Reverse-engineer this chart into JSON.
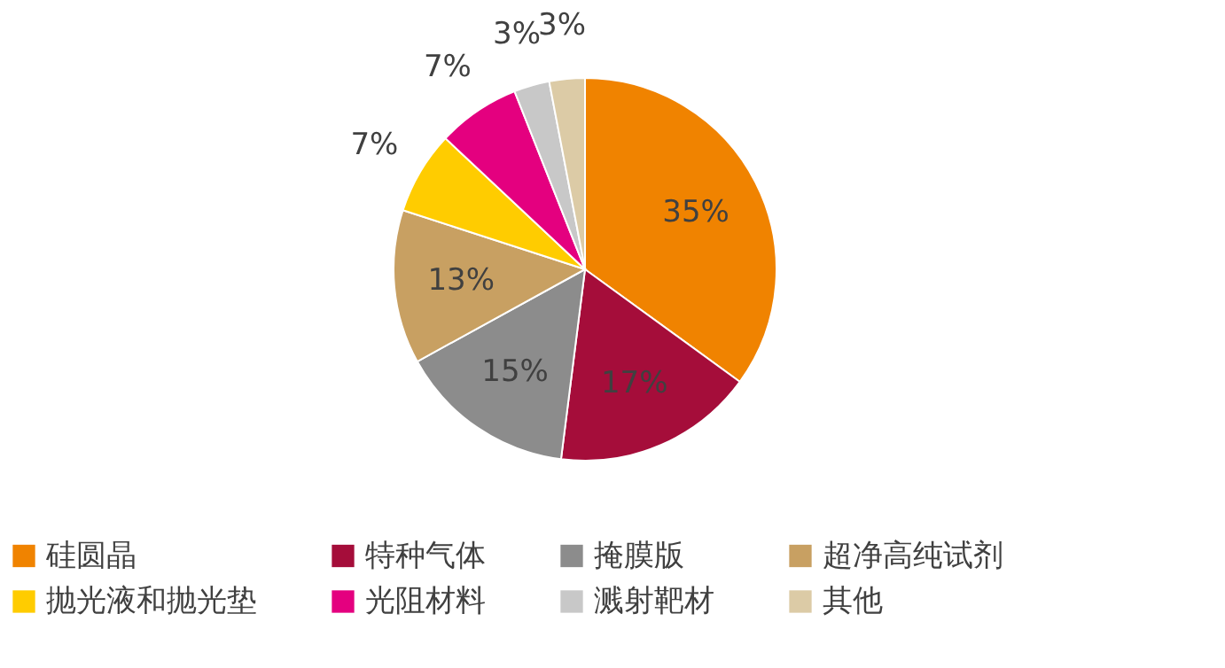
{
  "chart_data": {
    "type": "pie",
    "categories": [
      "硅圆晶",
      "特种气体",
      "掩膜版",
      "超净高纯试剂",
      "抛光液和抛光垫",
      "光阻材料",
      "溅射靶材",
      "其他"
    ],
    "values": [
      35,
      17,
      15,
      13,
      7,
      7,
      3,
      3
    ],
    "value_labels": [
      "35%",
      "17%",
      "15%",
      "13%",
      "7%",
      "7%",
      "3%",
      "3%"
    ],
    "colors": [
      "#f08300",
      "#a50d3a",
      "#8c8c8c",
      "#c8a062",
      "#ffcc00",
      "#e4007f",
      "#c8c8c8",
      "#dccba6"
    ],
    "legend": "bottom"
  }
}
